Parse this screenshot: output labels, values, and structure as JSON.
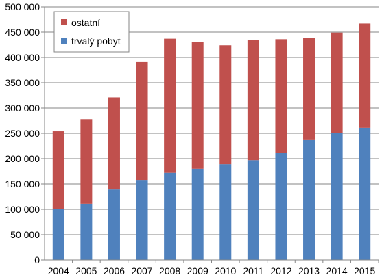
{
  "chart_data": {
    "type": "bar",
    "stacked": true,
    "categories": [
      "2004",
      "2005",
      "2006",
      "2007",
      "2008",
      "2009",
      "2010",
      "2011",
      "2012",
      "2013",
      "2014",
      "2015"
    ],
    "series": [
      {
        "name": "trvalý pobyt",
        "color": "#4f81bd",
        "values": [
          100000,
          111000,
          139000,
          158000,
          172000,
          180000,
          189000,
          197000,
          212000,
          238000,
          250000,
          261000
        ]
      },
      {
        "name": "ostatní",
        "color": "#c0504d",
        "values": [
          154000,
          167000,
          182000,
          234000,
          265000,
          251000,
          235000,
          237000,
          224000,
          200000,
          199000,
          206000
        ]
      }
    ],
    "ylim": [
      0,
      500000
    ],
    "y_ticks": [
      {
        "value": 0,
        "label": "0"
      },
      {
        "value": 50000,
        "label": "50 000"
      },
      {
        "value": 100000,
        "label": "100 000"
      },
      {
        "value": 150000,
        "label": "150 000"
      },
      {
        "value": 200000,
        "label": "200 000"
      },
      {
        "value": 250000,
        "label": "250 000"
      },
      {
        "value": 300000,
        "label": "300 000"
      },
      {
        "value": 350000,
        "label": "350 000"
      },
      {
        "value": 400000,
        "label": "400 000"
      },
      {
        "value": 450000,
        "label": "450 000"
      },
      {
        "value": 500000,
        "label": "500 000"
      }
    ],
    "grid": true,
    "legend": {
      "position": "top-left",
      "entries": [
        {
          "label": "ostatní",
          "color": "#c0504d"
        },
        {
          "label": "trvalý pobyt",
          "color": "#4f81bd"
        }
      ]
    },
    "title": "",
    "xlabel": "",
    "ylabel": ""
  }
}
